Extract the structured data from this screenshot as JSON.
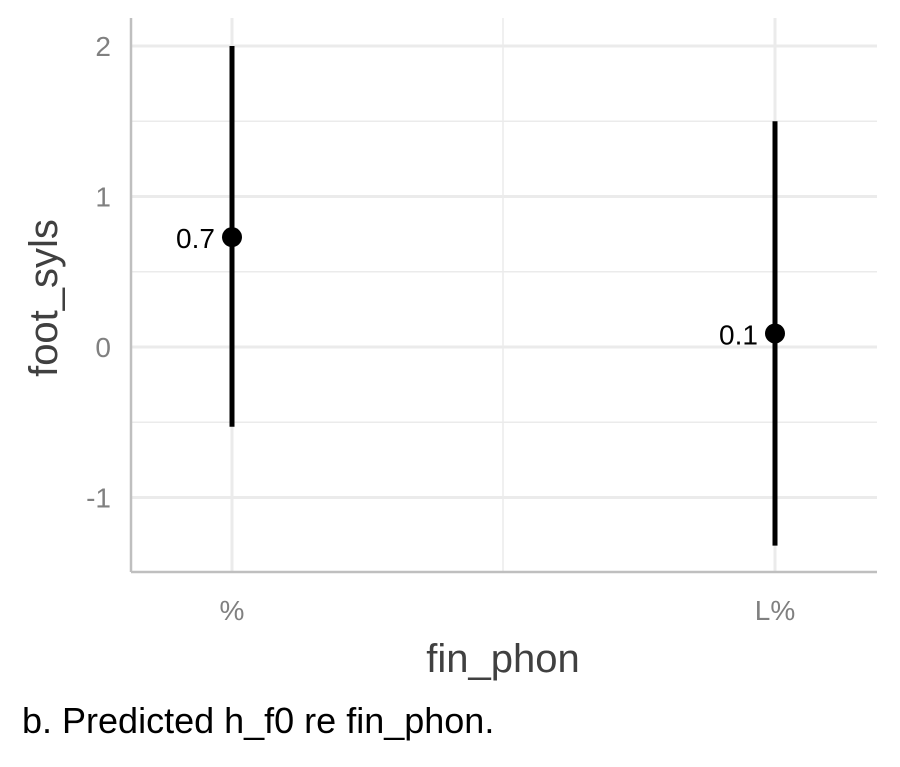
{
  "chart_data": {
    "type": "scatter",
    "xlabel": "fin_phon",
    "ylabel": "foot_syls",
    "categories": [
      "%",
      "L%"
    ],
    "points": [
      {
        "x": "%",
        "y": 0.73,
        "lower": -0.53,
        "upper": 2.0,
        "label": "0.7"
      },
      {
        "x": "L%",
        "y": 0.09,
        "lower": -1.32,
        "upper": 1.5,
        "label": "0.1"
      }
    ],
    "yticks": [
      2,
      1,
      0,
      -1
    ],
    "ytick_labels": [
      "2",
      "1",
      "0",
      "-1"
    ],
    "ylim": [
      -1.5,
      2.0
    ],
    "grid": true,
    "colors": {
      "mark": "#000000",
      "grid": "#ebebeb",
      "axis": "#bfbfbf"
    }
  },
  "caption": "b. Predicted h_f0 re fin_phon."
}
